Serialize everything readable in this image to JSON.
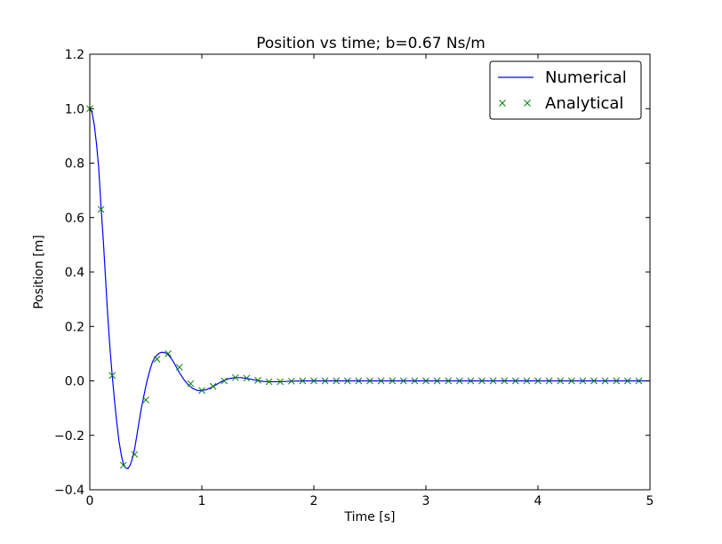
{
  "chart_data": {
    "type": "line",
    "title": "Position vs time; b=0.67 Ns/m",
    "xlabel": "Time [s]",
    "ylabel": "Position [m]",
    "xlim": [
      0,
      5
    ],
    "ylim": [
      -0.4,
      1.2
    ],
    "xticks": [
      0,
      1,
      2,
      3,
      4,
      5
    ],
    "xtick_labels": [
      "0",
      "1",
      "2",
      "3",
      "4",
      "5"
    ],
    "yticks": [
      -0.4,
      -0.2,
      0.0,
      0.2,
      0.4,
      0.6,
      0.8,
      1.0,
      1.2
    ],
    "ytick_labels": [
      "−0.4",
      "−0.2",
      "0.0",
      "0.2",
      "0.4",
      "0.6",
      "0.8",
      "1.0",
      "1.2"
    ],
    "grid": false,
    "legend_position": "top-right",
    "series": [
      {
        "name": "Numerical",
        "style": "line",
        "color": "#0000ff",
        "x": [
          0,
          0.02,
          0.04,
          0.06,
          0.08,
          0.1,
          0.12,
          0.14,
          0.16,
          0.18,
          0.2,
          0.22,
          0.24,
          0.26,
          0.28,
          0.3,
          0.32,
          0.34,
          0.36,
          0.38,
          0.4,
          0.42,
          0.44,
          0.46,
          0.48,
          0.5,
          0.52,
          0.54,
          0.56,
          0.58,
          0.6,
          0.62,
          0.64,
          0.66,
          0.68,
          0.7,
          0.72,
          0.74,
          0.76,
          0.78,
          0.8,
          0.84,
          0.88,
          0.92,
          0.96,
          1.0,
          1.04,
          1.08,
          1.12,
          1.16,
          1.2,
          1.25,
          1.3,
          1.35,
          1.4,
          1.45,
          1.5,
          1.55,
          1.6,
          1.7,
          1.8,
          1.9,
          2.0,
          2.2,
          2.4,
          2.6,
          2.8,
          3.0,
          3.5,
          4.0,
          4.5,
          5.0
        ],
        "y": [
          1.0,
          0.985,
          0.94,
          0.87,
          0.78,
          0.64,
          0.52,
          0.38,
          0.24,
          0.12,
          0.02,
          -0.07,
          -0.15,
          -0.22,
          -0.27,
          -0.305,
          -0.32,
          -0.322,
          -0.31,
          -0.285,
          -0.25,
          -0.2,
          -0.15,
          -0.1,
          -0.06,
          -0.02,
          0.015,
          0.045,
          0.07,
          0.085,
          0.095,
          0.102,
          0.105,
          0.105,
          0.102,
          0.096,
          0.086,
          0.074,
          0.06,
          0.045,
          0.03,
          0.005,
          -0.015,
          -0.028,
          -0.035,
          -0.036,
          -0.032,
          -0.025,
          -0.016,
          -0.006,
          0.002,
          0.009,
          0.012,
          0.012,
          0.009,
          0.005,
          0.001,
          -0.002,
          -0.003,
          -0.003,
          -0.001,
          0.0,
          0.0,
          0.0,
          0.0,
          0.0,
          0.0,
          0.0,
          0.0,
          0.0,
          0.0,
          0.0
        ]
      },
      {
        "name": "Analytical",
        "style": "marker-x",
        "color": "#008000",
        "x": [
          0.0,
          0.1,
          0.2,
          0.3,
          0.4,
          0.5,
          0.6,
          0.7,
          0.8,
          0.9,
          1.0,
          1.1,
          1.2,
          1.3,
          1.4,
          1.5,
          1.6,
          1.7,
          1.8,
          1.9,
          2.0,
          2.1,
          2.2,
          2.3,
          2.4,
          2.5,
          2.6,
          2.7,
          2.8,
          2.9,
          3.0,
          3.1,
          3.2,
          3.3,
          3.4,
          3.5,
          3.6,
          3.7,
          3.8,
          3.9,
          4.0,
          4.1,
          4.2,
          4.3,
          4.4,
          4.5,
          4.6,
          4.7,
          4.8,
          4.9
        ],
        "y": [
          1.0,
          0.63,
          0.02,
          -0.31,
          -0.27,
          -0.07,
          0.08,
          0.1,
          0.05,
          -0.01,
          -0.035,
          -0.02,
          0.0,
          0.012,
          0.01,
          0.002,
          -0.003,
          -0.003,
          -0.001,
          0.0,
          0.0,
          0.0,
          0.0,
          0.0,
          0.0,
          0.0,
          0.0,
          0.0,
          0.0,
          0.0,
          0.0,
          0.0,
          0.0,
          0.0,
          0.0,
          0.0,
          0.0,
          0.0,
          0.0,
          0.0,
          0.0,
          0.0,
          0.0,
          0.0,
          0.0,
          0.0,
          0.0,
          0.0,
          0.0,
          0.0
        ]
      }
    ]
  }
}
